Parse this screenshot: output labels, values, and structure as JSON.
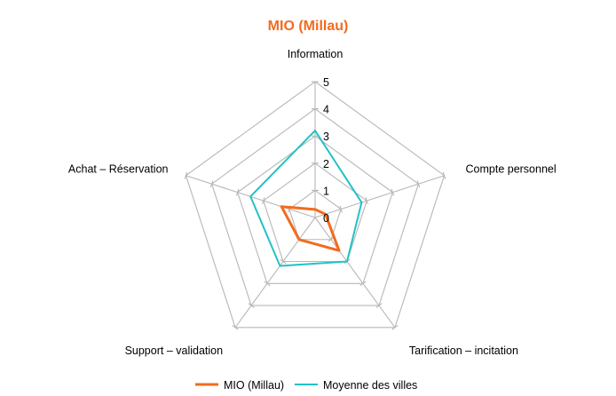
{
  "colors": {
    "title": "#f26b1d",
    "grid": "#b7b7b7",
    "series_1": "#f26b1d",
    "series_2": "#21c2c6"
  },
  "chart_data": {
    "type": "radar",
    "title": "MIO (Millau)",
    "axes": [
      "Information",
      "Compte personnel",
      "Tarification – incitation",
      "Support – validation",
      "Achat – Réservation"
    ],
    "rlim": [
      0,
      5
    ],
    "ticks": [
      "0",
      "1",
      "2",
      "3",
      "4",
      "5"
    ],
    "grid": true,
    "legend": "bottom",
    "series": [
      {
        "name": "MIO (Millau)",
        "values": [
          0.3,
          0.4,
          1.5,
          1.0,
          1.3
        ]
      },
      {
        "name": "Moyenne des villes",
        "values": [
          3.2,
          1.8,
          2.0,
          2.2,
          2.5
        ]
      }
    ]
  }
}
